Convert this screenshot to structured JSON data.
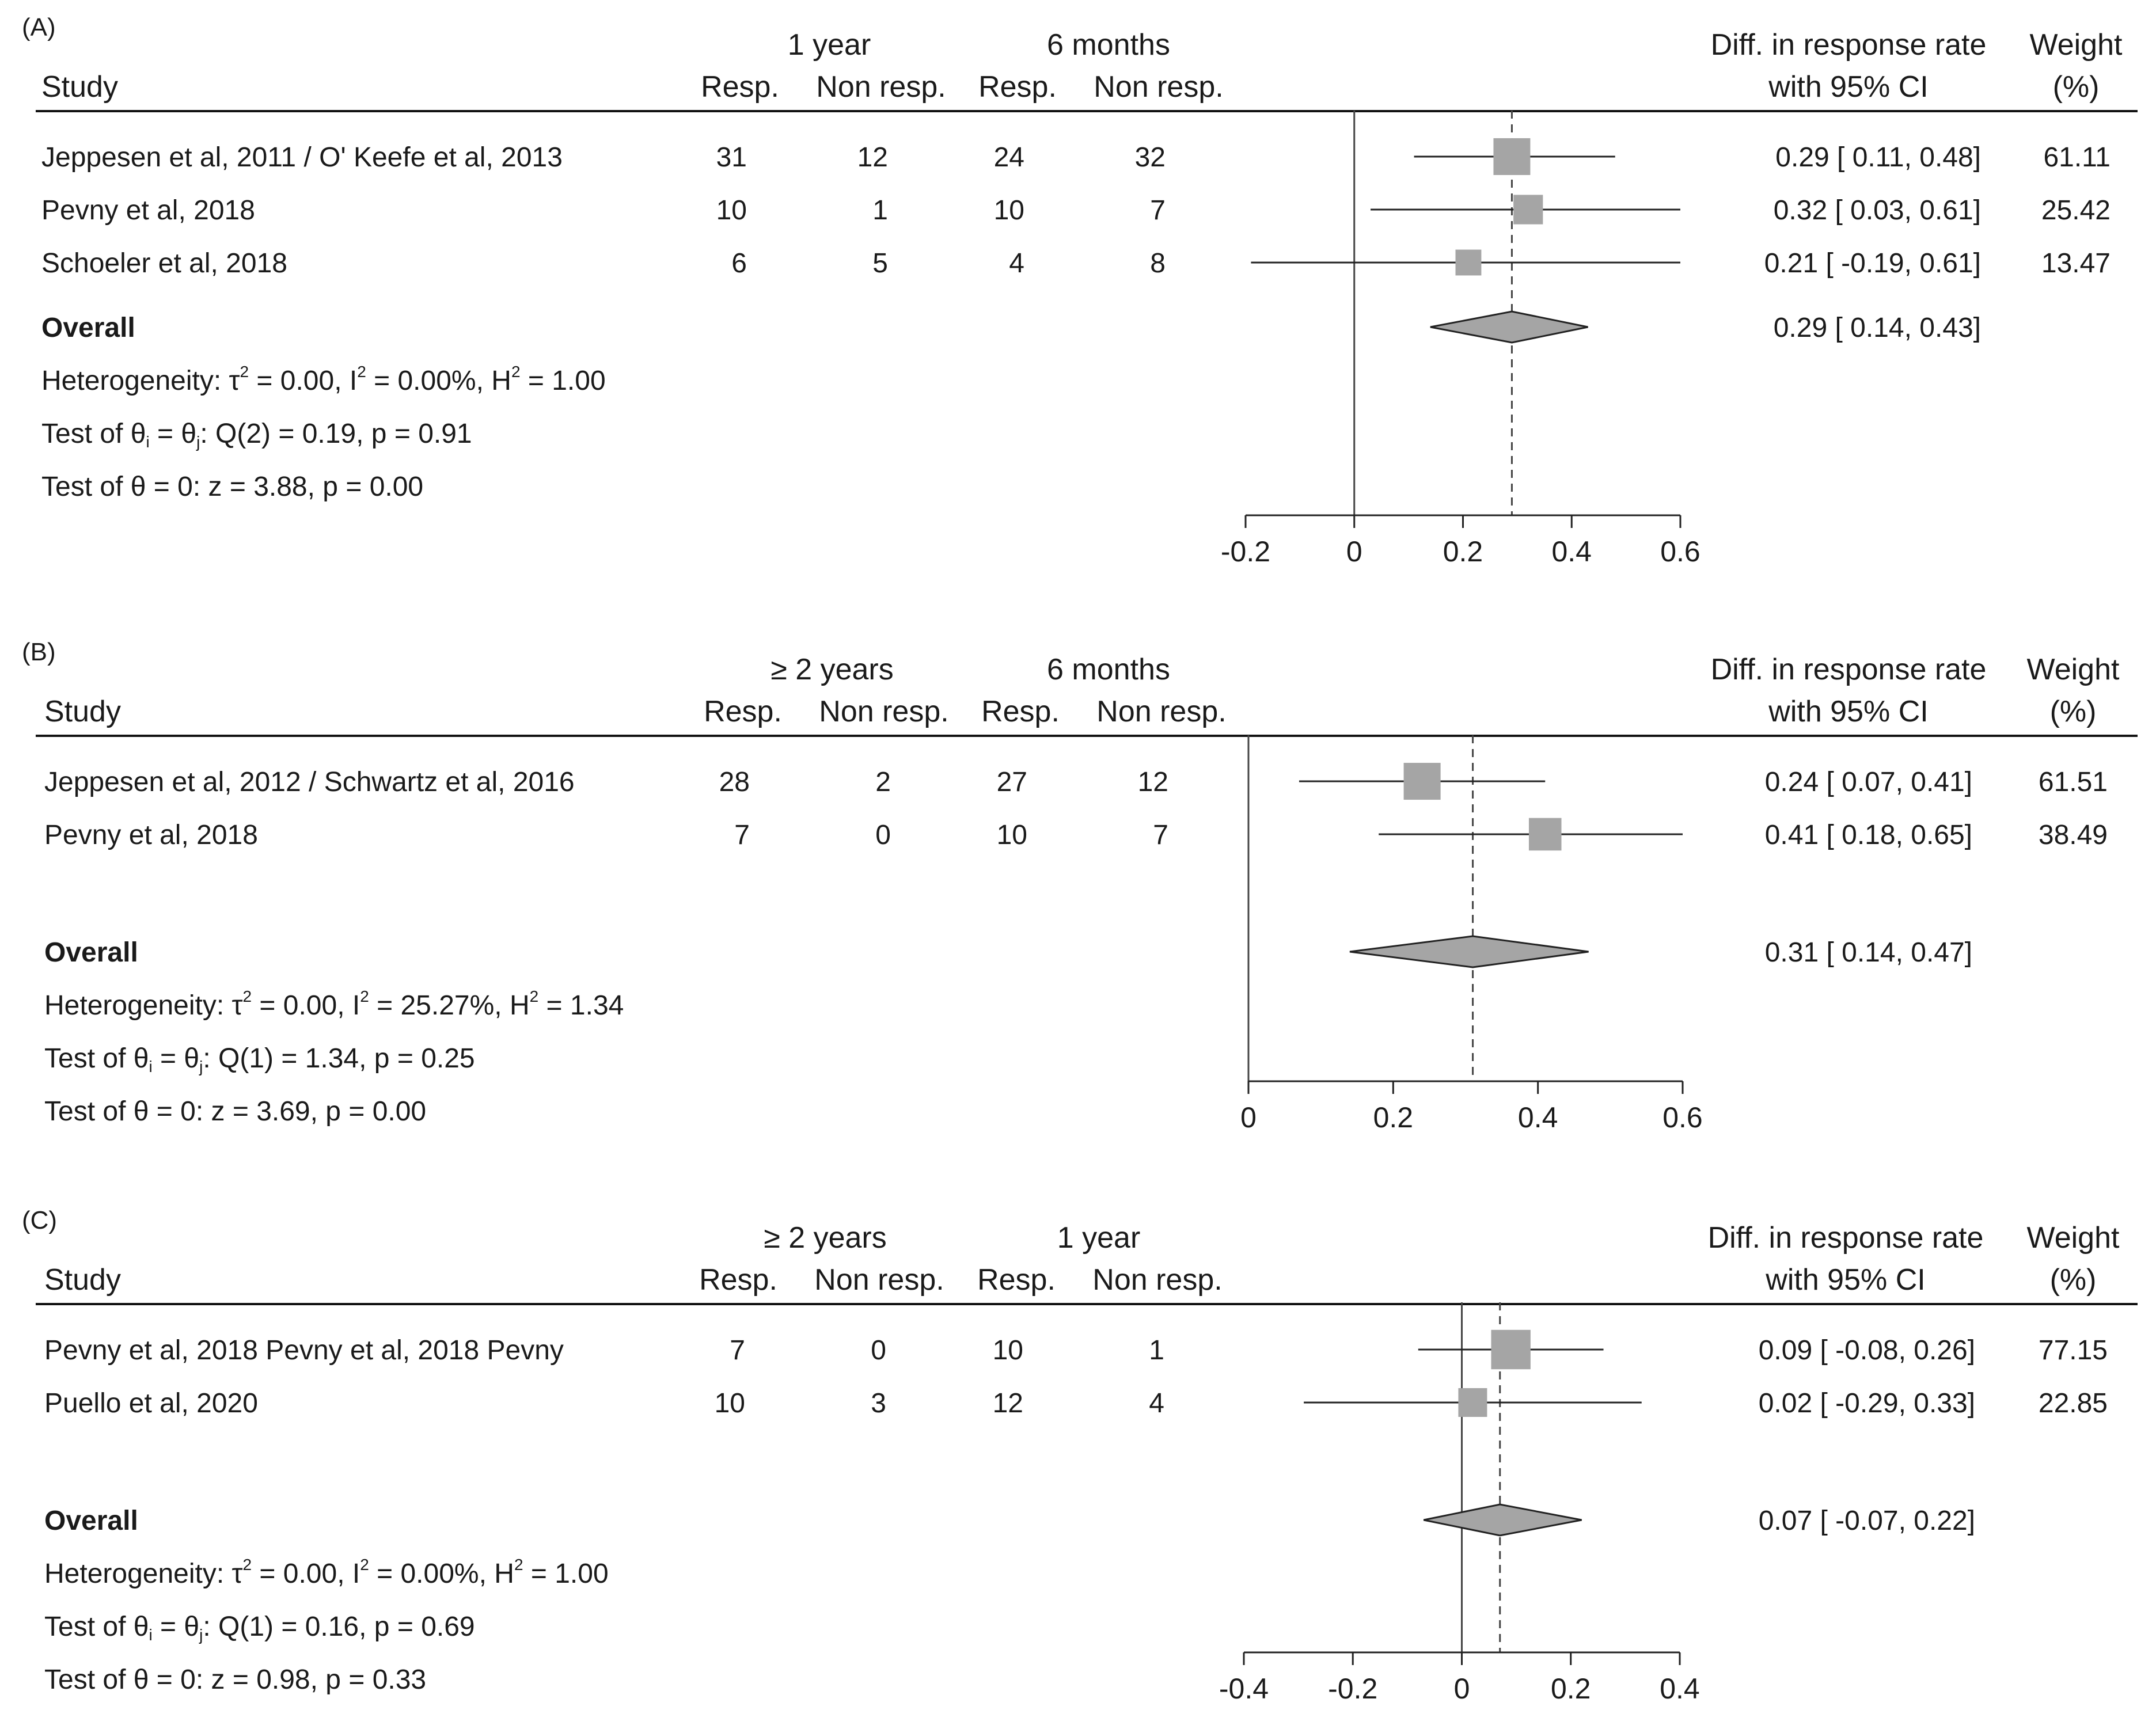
{
  "chart_data": [
    {
      "type": "forest",
      "panel_label": "(A)",
      "group1_label": "1 year",
      "group2_label": "6 months",
      "column_headers": {
        "study": "Study",
        "resp": "Resp.",
        "non_resp": "Non resp.",
        "effect_line1": "Diff. in response rate",
        "effect_line2": "with 95% CI",
        "weight_line1": "Weight",
        "weight_line2": "(%)"
      },
      "studies": [
        {
          "name": "Jeppesen et al, 2011 / O' Keefe et al, 2013",
          "g1_resp": "31",
          "g1_non": "12",
          "g2_resp": "24",
          "g2_non": "32",
          "est": 0.29,
          "lo": 0.11,
          "hi": 0.48,
          "ci_text": "0.29 [  0.11,  0.48]",
          "weight": "61.11",
          "weight_value": 61.11
        },
        {
          "name": "Pevny et al, 2018",
          "g1_resp": "10",
          "g1_non": "1",
          "g2_resp": "10",
          "g2_non": "7",
          "est": 0.32,
          "lo": 0.03,
          "hi": 0.61,
          "ci_text": "0.32 [  0.03,  0.61]",
          "weight": "25.42",
          "weight_value": 25.42
        },
        {
          "name": "Schoeler et al, 2018",
          "g1_resp": "6",
          "g1_non": "5",
          "g2_resp": "4",
          "g2_non": "8",
          "est": 0.21,
          "lo": -0.19,
          "hi": 0.61,
          "ci_text": "0.21 [ -0.19,  0.61]",
          "weight": "13.47",
          "weight_value": 13.47
        }
      ],
      "overall": {
        "label": "Overall",
        "est": 0.29,
        "lo": 0.14,
        "hi": 0.43,
        "ci_text": "0.29 [  0.14,  0.43]"
      },
      "stats": {
        "tau2": "0.00",
        "I2": "0.00%",
        "H2": "1.00",
        "q_df": "2",
        "q": "0.19",
        "q_p": "0.91",
        "z": "3.88",
        "z_p": "0.00"
      },
      "xlim": [
        -0.2,
        0.6
      ],
      "ticks": [
        -0.2,
        0,
        0.2,
        0.4,
        0.6
      ],
      "tick_labels": [
        "-0.2",
        "0",
        "0.2",
        "0.4",
        "0.6"
      ]
    },
    {
      "type": "forest",
      "panel_label": "(B)",
      "group1_label": "≥ 2 years",
      "group2_label": "6 months",
      "column_headers": {
        "study": "Study",
        "resp": "Resp.",
        "non_resp": "Non resp.",
        "effect_line1": "Diff. in response rate",
        "effect_line2": "with 95% CI",
        "weight_line1": "Weight",
        "weight_line2": "(%)"
      },
      "studies": [
        {
          "name": "Jeppesen et al, 2012 / Schwartz et al, 2016",
          "g1_resp": "28",
          "g1_non": "2",
          "g2_resp": "27",
          "g2_non": "12",
          "est": 0.24,
          "lo": 0.07,
          "hi": 0.41,
          "ci_text": "0.24 [ 0.07,  0.41]",
          "weight": "61.51",
          "weight_value": 61.51
        },
        {
          "name": "Pevny et al, 2018",
          "g1_resp": "7",
          "g1_non": "0",
          "g2_resp": "10",
          "g2_non": "7",
          "est": 0.41,
          "lo": 0.18,
          "hi": 0.65,
          "ci_text": "0.41 [ 0.18,  0.65]",
          "weight": "38.49",
          "weight_value": 38.49
        }
      ],
      "overall": {
        "label": "Overall",
        "est": 0.31,
        "lo": 0.14,
        "hi": 0.47,
        "ci_text": "0.31 [ 0.14,  0.47]"
      },
      "stats": {
        "tau2": "0.00",
        "I2": "25.27%",
        "H2": "1.34",
        "q_df": "1",
        "q": "1.34",
        "q_p": "0.25",
        "z": "3.69",
        "z_p": "0.00"
      },
      "xlim": [
        0,
        0.6
      ],
      "ticks": [
        0,
        0.2,
        0.4,
        0.6
      ],
      "tick_labels": [
        "0",
        "0.2",
        "0.4",
        "0.6"
      ]
    },
    {
      "type": "forest",
      "panel_label": "(C)",
      "group1_label": "≥ 2 years",
      "group2_label": "1 year",
      "column_headers": {
        "study": "Study",
        "resp": "Resp.",
        "non_resp": "Non resp.",
        "effect_line1": "Diff. in response rate",
        "effect_line2": "with 95% CI",
        "weight_line1": "Weight",
        "weight_line2": "(%)"
      },
      "studies": [
        {
          "name": "Pevny et al, 2018 Pevny et al, 2018 Pevny",
          "g1_resp": "7",
          "g1_non": "0",
          "g2_resp": "10",
          "g2_non": "1",
          "est": 0.09,
          "lo": -0.08,
          "hi": 0.26,
          "ci_text": "0.09 [ -0.08,  0.26]",
          "weight": "77.15",
          "weight_value": 77.15
        },
        {
          "name": "Puello et al, 2020",
          "g1_resp": "10",
          "g1_non": "3",
          "g2_resp": "12",
          "g2_non": "4",
          "est": 0.02,
          "lo": -0.29,
          "hi": 0.33,
          "ci_text": "0.02 [ -0.29,  0.33]",
          "weight": "22.85",
          "weight_value": 22.85
        }
      ],
      "overall": {
        "label": "Overall",
        "est": 0.07,
        "lo": -0.07,
        "hi": 0.22,
        "ci_text": "0.07 [ -0.07,  0.22]"
      },
      "stats": {
        "tau2": "0.00",
        "I2": "0.00%",
        "H2": "1.00",
        "q_df": "1",
        "q": "0.16",
        "q_p": "0.69",
        "z": "0.98",
        "z_p": "0.33"
      },
      "xlim": [
        -0.4,
        0.4
      ],
      "ticks": [
        -0.4,
        -0.2,
        0,
        0.2,
        0.4
      ],
      "tick_labels": [
        "-0.4",
        "-0.2",
        "0",
        "0.2",
        "0.4"
      ]
    }
  ]
}
